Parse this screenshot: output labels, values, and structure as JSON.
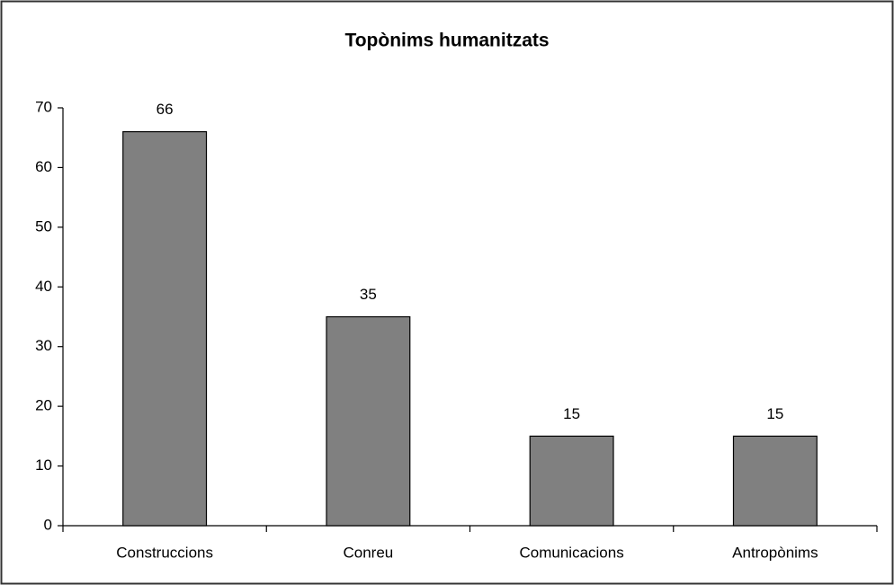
{
  "chart_data": {
    "type": "bar",
    "title": "Topònims humanitzats",
    "categories": [
      "Construccions",
      "Conreu",
      "Comunicacions",
      "Antropònims"
    ],
    "values": [
      66,
      35,
      15,
      15
    ],
    "color": "#808080",
    "ylim": [
      0,
      70
    ],
    "yticks": [
      0,
      10,
      20,
      30,
      40,
      50,
      60,
      70
    ],
    "grid": false,
    "data_labels": true
  }
}
